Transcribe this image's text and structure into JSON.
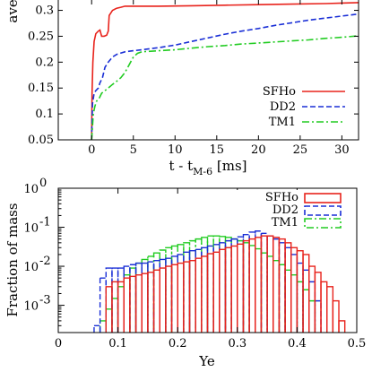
{
  "chart_data": [
    {
      "type": "line",
      "title": "",
      "xlabel": "t - t",
      "xlabel_sub": "M-6",
      "xlabel_unit": " [ms]",
      "ylabel": "average Ye",
      "xlim": [
        -4,
        32
      ],
      "ylim": [
        0.05,
        0.32
      ],
      "xticks": [
        0,
        5,
        10,
        15,
        20,
        25,
        30
      ],
      "yticks": [
        0.05,
        0.1,
        0.15,
        0.2,
        0.25,
        0.3
      ],
      "ytick_labels": [
        "0.05",
        "0.1",
        "0.15",
        "0.2",
        "0.25",
        "0.3"
      ],
      "xtick_labels": [
        "0",
        "5",
        "10",
        "15",
        "20",
        "25",
        "30"
      ],
      "legend_position": "right",
      "grid": false,
      "series": [
        {
          "name": "SFHo",
          "color": "#e8231c",
          "dash": "solid",
          "x": [
            0,
            0.05,
            0.15,
            0.3,
            0.5,
            0.8,
            1.0,
            1.2,
            1.5,
            1.8,
            2.0,
            2.1,
            2.5,
            3.0,
            3.5,
            4.0,
            5.0,
            8.0,
            12.0,
            16.0,
            20.0,
            24.0,
            28.0,
            32.0
          ],
          "y": [
            0.05,
            0.14,
            0.2,
            0.24,
            0.255,
            0.26,
            0.262,
            0.25,
            0.25,
            0.252,
            0.26,
            0.29,
            0.3,
            0.304,
            0.306,
            0.308,
            0.308,
            0.308,
            0.309,
            0.31,
            0.311,
            0.312,
            0.313,
            0.315
          ]
        },
        {
          "name": "DD2",
          "color": "#1a2fd6",
          "dash": "6,3",
          "x": [
            0,
            0.1,
            0.3,
            0.5,
            0.8,
            1.0,
            1.3,
            1.6,
            2.0,
            2.5,
            3.0,
            4.0,
            5.0,
            6.0,
            8.0,
            10.0,
            12.0,
            14.0,
            16.0,
            18.0,
            20.0,
            22.0,
            24.0,
            26.0,
            28.0,
            30.0,
            32.0
          ],
          "y": [
            0.05,
            0.12,
            0.14,
            0.145,
            0.15,
            0.16,
            0.17,
            0.19,
            0.2,
            0.21,
            0.215,
            0.22,
            0.222,
            0.224,
            0.228,
            0.233,
            0.24,
            0.247,
            0.254,
            0.26,
            0.265,
            0.271,
            0.276,
            0.281,
            0.285,
            0.289,
            0.293
          ]
        },
        {
          "name": "TM1",
          "color": "#22cc22",
          "dash": "8,3,2,3",
          "x": [
            0,
            0.2,
            0.4,
            0.6,
            0.9,
            1.2,
            1.6,
            2.0,
            2.5,
            3.0,
            3.5,
            4.0,
            4.5,
            5.0,
            5.5,
            6.0,
            8.0,
            10.0,
            12.0,
            14.0,
            16.0,
            18.0,
            20.0,
            22.0,
            24.0,
            26.0,
            28.0,
            30.0,
            32.0
          ],
          "y": [
            0.05,
            0.1,
            0.115,
            0.125,
            0.13,
            0.14,
            0.145,
            0.15,
            0.157,
            0.163,
            0.17,
            0.18,
            0.195,
            0.21,
            0.217,
            0.22,
            0.222,
            0.224,
            0.227,
            0.23,
            0.232,
            0.235,
            0.237,
            0.239,
            0.241,
            0.243,
            0.246,
            0.248,
            0.251
          ]
        }
      ]
    },
    {
      "type": "bar",
      "title": "",
      "xlabel": "Ye",
      "ylabel": "Fraction of mass",
      "xlim": [
        0,
        0.5
      ],
      "ylim": [
        0.0002,
        1
      ],
      "yscale": "log",
      "xticks": [
        0,
        0.1,
        0.2,
        0.3,
        0.4,
        0.5
      ],
      "xtick_labels": [
        "0",
        "0.1",
        "0.2",
        "0.3",
        "0.4",
        "0.5"
      ],
      "yticks": [
        0.001,
        0.01,
        0.1,
        1
      ],
      "ytick_labels": [
        {
          "base": "10",
          "exp": "-3"
        },
        {
          "base": "10",
          "exp": "-2"
        },
        {
          "base": "10",
          "exp": "-1"
        },
        {
          "base": "10",
          "exp": "0"
        }
      ],
      "bin_width": 0.01,
      "legend_position": "top-right",
      "grid": false,
      "series": [
        {
          "name": "SFHo",
          "color": "#e8231c",
          "dash": "solid",
          "bin_start": 0.08,
          "values": [
            0.003,
            0.004,
            0.004,
            0.005,
            0.0055,
            0.006,
            0.0065,
            0.007,
            0.008,
            0.009,
            0.01,
            0.011,
            0.012,
            0.013,
            0.014,
            0.016,
            0.018,
            0.021,
            0.023,
            0.027,
            0.03,
            0.033,
            0.037,
            0.045,
            0.05,
            0.055,
            0.06,
            0.06,
            0.055,
            0.05,
            0.04,
            0.03,
            0.025,
            0.02,
            0.01,
            0.007,
            0.004,
            0.003,
            0.0013,
            0.0004
          ]
        },
        {
          "name": "DD2",
          "color": "#1a2fd6",
          "dash": "6,3",
          "bin_start": 0.06,
          "values": [
            0.0003,
            0.005,
            0.009,
            0.009,
            0.009,
            0.01,
            0.011,
            0.012,
            0.012,
            0.013,
            0.014,
            0.015,
            0.016,
            0.018,
            0.02,
            0.023,
            0.025,
            0.027,
            0.03,
            0.033,
            0.036,
            0.04,
            0.045,
            0.05,
            0.057,
            0.065,
            0.075,
            0.08,
            0.07,
            0.06,
            0.05,
            0.04,
            0.03,
            0.02,
            0.012,
            0.008,
            0.004,
            0.0013
          ]
        },
        {
          "name": "TM1",
          "color": "#22cc22",
          "dash": "8,3,2,3",
          "bin_start": 0.07,
          "values": [
            0.0004,
            0.0008,
            0.0015,
            0.003,
            0.006,
            0.009,
            0.012,
            0.015,
            0.018,
            0.022,
            0.026,
            0.03,
            0.033,
            0.036,
            0.04,
            0.045,
            0.05,
            0.055,
            0.06,
            0.06,
            0.058,
            0.055,
            0.05,
            0.045,
            0.04,
            0.034,
            0.028,
            0.022,
            0.018,
            0.014,
            0.011,
            0.008,
            0.006,
            0.004,
            0.0025,
            0.0013
          ]
        }
      ]
    }
  ]
}
